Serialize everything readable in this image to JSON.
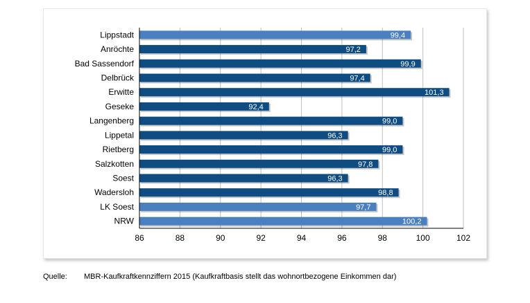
{
  "chart_data": {
    "type": "bar",
    "orientation": "horizontal",
    "categories": [
      "Lippstadt",
      "Anröchte",
      "Bad Sassendorf",
      "Delbrück",
      "Erwitte",
      "Geseke",
      "Langenberg",
      "Lippetal",
      "Rietberg",
      "Salzkotten",
      "Soest",
      "Wadersloh",
      "LK Soest",
      "NRW"
    ],
    "values": [
      99.4,
      97.2,
      99.9,
      97.4,
      101.3,
      92.4,
      99.0,
      96.3,
      99.0,
      97.8,
      96.3,
      98.8,
      97.7,
      100.2
    ],
    "value_labels": [
      "99,4",
      "97,2",
      "99,9",
      "97,4",
      "101,3",
      "92,4",
      "99,0",
      "96,3",
      "99,0",
      "97,8",
      "96,3",
      "98,8",
      "97,7",
      "100,2"
    ],
    "highlight": [
      true,
      false,
      false,
      false,
      false,
      false,
      false,
      false,
      false,
      false,
      false,
      false,
      true,
      true
    ],
    "xlim": [
      86,
      102
    ],
    "xticks": [
      86,
      88,
      90,
      92,
      94,
      96,
      98,
      100,
      102
    ],
    "grid": "vertical",
    "colors": {
      "bar": "#0e4c82",
      "highlight": "#4a80bf",
      "grid": "#bfbfbf"
    },
    "title": "",
    "xlabel": "",
    "ylabel": ""
  },
  "source": {
    "label": "Quelle:",
    "text": "MBR-Kaufkraftkennziffern 2015 (Kaufkraftbasis stellt das wohnortbezogene Einkommen dar)"
  }
}
